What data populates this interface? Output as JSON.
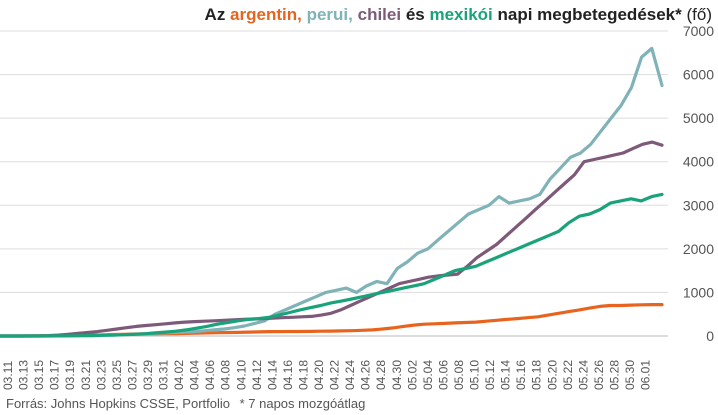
{
  "title": {
    "prefix": "Az ",
    "argentin": "argentin,",
    "perui": "perui,",
    "chilei": "chilei",
    "es": "és",
    "mexikoi": "mexikói",
    "rest": "napi megbetegedések*",
    "unit": "(fő)"
  },
  "source": {
    "text": "Forrás: Johns Hopkins CSSE, Portfolio",
    "note": "* 7 napos mozgóátlag"
  },
  "colors": {
    "argentin": "#e8641e",
    "perui": "#7fb3b8",
    "chilei": "#7d5a7a",
    "mexikoi": "#1aa37a",
    "grid": "#dddddd",
    "axis_text": "#555555"
  },
  "chart_data": {
    "type": "line",
    "ylim": [
      0,
      7000
    ],
    "y_ticks": [
      "0",
      "1000",
      "2000",
      "3000",
      "4000",
      "5000",
      "6000",
      "7000"
    ],
    "y_axis_side": "right",
    "grid": true,
    "x_start": "03.11",
    "x_end": "06.03",
    "x_labels": [
      "03.11",
      "03.13",
      "03.15",
      "03.17",
      "03.19",
      "03.21",
      "03.23",
      "03.25",
      "03.27",
      "03.29",
      "03.31",
      "04.02",
      "04.04",
      "04.06",
      "04.08",
      "04.10",
      "04.12",
      "04.14",
      "04.16",
      "04.18",
      "04.20",
      "04.22",
      "04.24",
      "04.26",
      "04.28",
      "04.30",
      "05.02",
      "05.04",
      "05.06",
      "05.08",
      "05.10",
      "05.12",
      "05.14",
      "05.16",
      "05.18",
      "05.20",
      "05.22",
      "05.24",
      "05.26",
      "05.28",
      "05.30",
      "06.01"
    ],
    "series": [
      {
        "name": "argentin",
        "color_key": "argentin",
        "values": [
          0,
          0,
          0,
          1,
          2,
          4,
          7,
          10,
          15,
          20,
          28,
          35,
          40,
          45,
          50,
          50,
          52,
          55,
          60,
          65,
          70,
          75,
          80,
          82,
          90,
          95,
          100,
          102,
          103,
          104,
          106,
          110,
          113,
          118,
          122,
          130,
          140,
          160,
          185,
          220,
          250,
          270,
          280,
          290,
          300,
          310,
          320,
          340,
          360,
          380,
          400,
          420,
          440,
          480,
          520,
          560,
          600,
          640,
          680,
          700,
          700,
          710,
          715,
          720,
          720
        ]
      },
      {
        "name": "perui",
        "color_key": "perui",
        "values": [
          0,
          0,
          0,
          0,
          1,
          1,
          2,
          5,
          8,
          12,
          18,
          25,
          32,
          40,
          50,
          60,
          70,
          80,
          90,
          100,
          120,
          140,
          160,
          190,
          230,
          290,
          350,
          500,
          600,
          700,
          800,
          900,
          1000,
          1050,
          1100,
          1000,
          1150,
          1250,
          1200,
          1550,
          1700,
          1900,
          2000,
          2200,
          2400,
          2600,
          2800,
          2900,
          3000,
          3200,
          3050,
          3100,
          3150,
          3250,
          3600,
          3850,
          4100,
          4200,
          4400,
          4700,
          5000,
          5300,
          5700,
          6400,
          6600,
          5750
        ]
      },
      {
        "name": "chilei",
        "color_key": "chilei",
        "values": [
          0,
          0,
          0,
          2,
          5,
          10,
          20,
          40,
          60,
          80,
          100,
          130,
          160,
          190,
          220,
          240,
          260,
          280,
          300,
          320,
          330,
          340,
          350,
          360,
          370,
          380,
          390,
          400,
          410,
          420,
          430,
          440,
          450,
          480,
          520,
          600,
          700,
          800,
          900,
          1000,
          1100,
          1200,
          1250,
          1300,
          1350,
          1380,
          1400,
          1420,
          1600,
          1800,
          1950,
          2100,
          2300,
          2500,
          2700,
          2900,
          3100,
          3300,
          3500,
          3700,
          4000,
          4050,
          4100,
          4150,
          4200,
          4300,
          4400,
          4450,
          4380
        ]
      },
      {
        "name": "mexikoi",
        "color_key": "mexikoi",
        "values": [
          0,
          0,
          0,
          0,
          1,
          2,
          3,
          5,
          8,
          10,
          15,
          20,
          30,
          40,
          50,
          70,
          90,
          110,
          140,
          180,
          220,
          270,
          310,
          350,
          380,
          400,
          430,
          480,
          540,
          600,
          650,
          700,
          760,
          800,
          850,
          900,
          950,
          1000,
          1050,
          1100,
          1150,
          1200,
          1300,
          1400,
          1500,
          1550,
          1600,
          1700,
          1800,
          1900,
          2000,
          2100,
          2200,
          2300,
          2400,
          2600,
          2750,
          2800,
          2900,
          3050,
          3100,
          3150,
          3100,
          3200,
          3250
        ]
      }
    ]
  }
}
